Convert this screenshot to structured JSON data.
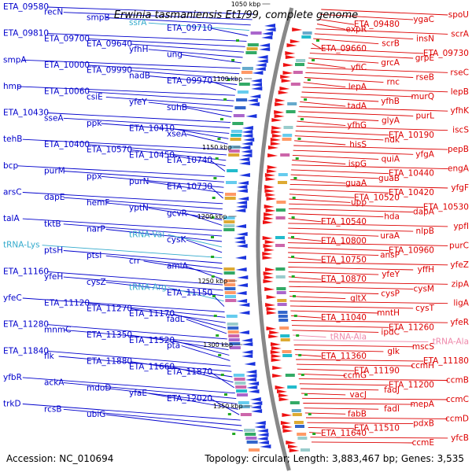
{
  "title": "Erwinia tasmaniensis Et1/99, complete genome",
  "accession": "Accession: NC_010694",
  "topology": "Topology: circular; Length: 3,883,467 bp; Genes: 3,535",
  "colors": {
    "left": "#0000cc",
    "right": "#dd0000",
    "rna": "#33aacc",
    "rna_right": "#ee88aa",
    "backbone": "#888888"
  },
  "kbp_marks": [
    "1050 kbp",
    "1100 kbp",
    "1150 kbp",
    "1200 kbp",
    "1250 kbp",
    "1300 kbp",
    "1350 kbp"
  ],
  "left_genes": [
    {
      "t": "ETA_09580"
    },
    {
      "t": "recN"
    },
    {
      "t": "smpB"
    },
    {
      "t": "ssrA",
      "rna": true
    },
    {
      "t": "ETA_09710"
    },
    {
      "t": "ETA_09810"
    },
    {
      "t": "ETA_09700"
    },
    {
      "t": "ETA_09640"
    },
    {
      "t": "yfhH"
    },
    {
      "t": "ung"
    },
    {
      "t": "smpA"
    },
    {
      "t": "ETA_10000"
    },
    {
      "t": "ETA_09990"
    },
    {
      "t": "nadB"
    },
    {
      "t": "ETA_09970"
    },
    {
      "t": "hmp"
    },
    {
      "t": "ETA_10060"
    },
    {
      "t": "csiE"
    },
    {
      "t": "yfeY"
    },
    {
      "t": "suhB"
    },
    {
      "t": "ETA_10430"
    },
    {
      "t": "sseA"
    },
    {
      "t": "ppk"
    },
    {
      "t": "ETA_10410"
    },
    {
      "t": "xseA"
    },
    {
      "t": "tehB"
    },
    {
      "t": "ETA_10400"
    },
    {
      "t": "ETA_10570"
    },
    {
      "t": "ETA_10450"
    },
    {
      "t": "ETA_10740"
    },
    {
      "t": "bcp"
    },
    {
      "t": "purM"
    },
    {
      "t": "ppx"
    },
    {
      "t": "purN"
    },
    {
      "t": "ETA_10730"
    },
    {
      "t": "arsC"
    },
    {
      "t": "dapE"
    },
    {
      "t": "hemF"
    },
    {
      "t": "yptN"
    },
    {
      "t": "gcvR"
    },
    {
      "t": "talA"
    },
    {
      "t": "tktB"
    },
    {
      "t": "narP"
    },
    {
      "t": "tRNA-Val",
      "rna": true
    },
    {
      "t": "cysK"
    },
    {
      "t": "tRNA-Lys",
      "rna": true
    },
    {
      "t": "ptsH"
    },
    {
      "t": "ptsI"
    },
    {
      "t": "crr"
    },
    {
      "t": "amiA"
    },
    {
      "t": "ETA_11160"
    },
    {
      "t": "yfeH"
    },
    {
      "t": "cysZ"
    },
    {
      "t": "tRNA-Arg",
      "rna": true
    },
    {
      "t": "ETA_11150"
    },
    {
      "t": "yfeC"
    },
    {
      "t": "ETA_11120"
    },
    {
      "t": "ETA_11270"
    },
    {
      "t": "ETA_11170"
    },
    {
      "t": "fadL"
    },
    {
      "t": "ETA_11280"
    },
    {
      "t": "mnmC"
    },
    {
      "t": "ETA_11350"
    },
    {
      "t": "ETA_11520"
    },
    {
      "t": "pta"
    },
    {
      "t": "ETA_11840"
    },
    {
      "t": "flk"
    },
    {
      "t": "ETA_11880"
    },
    {
      "t": "ETA_11660"
    },
    {
      "t": "ETA_11870"
    },
    {
      "t": "yfbR"
    },
    {
      "t": "ackA"
    },
    {
      "t": "mdoD"
    },
    {
      "t": "yfaE"
    },
    {
      "t": "ETA_12020"
    },
    {
      "t": "trkD"
    },
    {
      "t": "rcsB"
    },
    {
      "t": "ubiG"
    }
  ],
  "right_genes": [
    {
      "t": "spoU"
    },
    {
      "t": "ygaC"
    },
    {
      "t": "ETA_09480"
    },
    {
      "t": "expR"
    },
    {
      "t": "scrA"
    },
    {
      "t": "insN"
    },
    {
      "t": "scrB"
    },
    {
      "t": "ETA_09660"
    },
    {
      "t": "ETA_09730"
    },
    {
      "t": "grpE"
    },
    {
      "t": "grcA"
    },
    {
      "t": "yfiC"
    },
    {
      "t": "rseC"
    },
    {
      "t": "rseB"
    },
    {
      "t": "rnc"
    },
    {
      "t": "lepA"
    },
    {
      "t": "lepB"
    },
    {
      "t": "murQ"
    },
    {
      "t": "yfhB"
    },
    {
      "t": "tadA"
    },
    {
      "t": "yfhK"
    },
    {
      "t": "purL"
    },
    {
      "t": "glyA"
    },
    {
      "t": "yfhG"
    },
    {
      "t": "iscS"
    },
    {
      "t": "ETA_10190"
    },
    {
      "t": "ndk"
    },
    {
      "t": "hisS"
    },
    {
      "t": "pepB"
    },
    {
      "t": "yfgA"
    },
    {
      "t": "quiA"
    },
    {
      "t": "ispG"
    },
    {
      "t": "engA"
    },
    {
      "t": "ETA_10440"
    },
    {
      "t": "guaB"
    },
    {
      "t": "guaA"
    },
    {
      "t": "yfgF"
    },
    {
      "t": "ETA_10420"
    },
    {
      "t": "ETA_10520"
    },
    {
      "t": "upp"
    },
    {
      "t": "ETA_10530"
    },
    {
      "t": "dapA"
    },
    {
      "t": "hda"
    },
    {
      "t": "ETA_10540"
    },
    {
      "t": "ypfI"
    },
    {
      "t": "nlpB"
    },
    {
      "t": "uraA"
    },
    {
      "t": "ETA_10800"
    },
    {
      "t": "purC"
    },
    {
      "t": "ETA_10960"
    },
    {
      "t": "ansP"
    },
    {
      "t": "ETA_10750"
    },
    {
      "t": "yfeZ"
    },
    {
      "t": "yffH"
    },
    {
      "t": "yfeY"
    },
    {
      "t": "ETA_10870"
    },
    {
      "t": "zipA"
    },
    {
      "t": "cysM"
    },
    {
      "t": "cysP"
    },
    {
      "t": "gltX"
    },
    {
      "t": "ligA"
    },
    {
      "t": "cysT"
    },
    {
      "t": "mntH"
    },
    {
      "t": "ETA_11040"
    },
    {
      "t": "yfeR"
    },
    {
      "t": "ETA_11260"
    },
    {
      "t": "ipdC"
    },
    {
      "t": "tRNA-Ala",
      "rna": true
    },
    {
      "t": "tRNA-Ala",
      "rna": true
    },
    {
      "t": "mscS"
    },
    {
      "t": "glk"
    },
    {
      "t": "ETA_11360"
    },
    {
      "t": "ETA_11180"
    },
    {
      "t": "ccmH"
    },
    {
      "t": "ETA_11190"
    },
    {
      "t": "ccmG"
    },
    {
      "t": "ccmB"
    },
    {
      "t": "ETA_11200"
    },
    {
      "t": "fadJ"
    },
    {
      "t": "vacJ"
    },
    {
      "t": "ccmC"
    },
    {
      "t": "mepA"
    },
    {
      "t": "fadI"
    },
    {
      "t": "fabB"
    },
    {
      "t": "ccmD"
    },
    {
      "t": "pdxB"
    },
    {
      "t": "ETA_11510"
    },
    {
      "t": "ETA_11640"
    },
    {
      "t": "yfcB"
    },
    {
      "t": "ccmE"
    }
  ]
}
